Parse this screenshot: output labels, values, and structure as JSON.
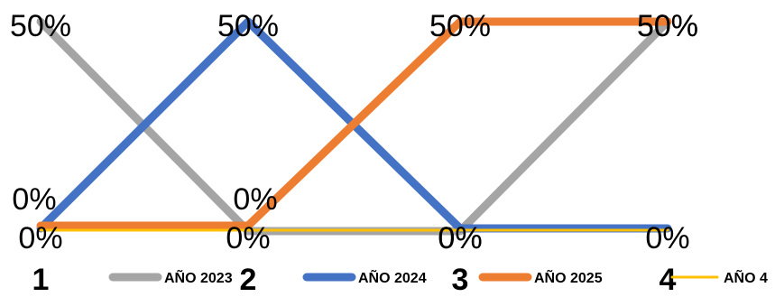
{
  "chart_data": {
    "type": "line",
    "categories": [
      "1",
      "2",
      "3",
      "4"
    ],
    "ylim": [
      0,
      0.5
    ],
    "legend_position": "bottom",
    "grid": false,
    "series": [
      {
        "name": "AÑO 2023",
        "color": "#A5A5A5",
        "values": [
          0.5,
          0,
          0,
          0.5
        ],
        "labels": [
          "50%",
          "0%",
          "0%",
          "50%"
        ]
      },
      {
        "name": "AÑO 2024",
        "color": "#4472C4",
        "values": [
          0,
          0.5,
          0,
          0
        ],
        "labels": [
          "0%",
          "50%",
          "0%",
          "0%"
        ]
      },
      {
        "name": "AÑO 2025",
        "color": "#ED7D31",
        "values": [
          0,
          0,
          0.5,
          0.5
        ],
        "labels": [
          "0%",
          "0%",
          "50%",
          "50%"
        ]
      },
      {
        "name": "AÑO 4",
        "color": "#FFC000",
        "values": [
          0,
          0,
          0,
          0
        ],
        "labels": []
      }
    ]
  }
}
